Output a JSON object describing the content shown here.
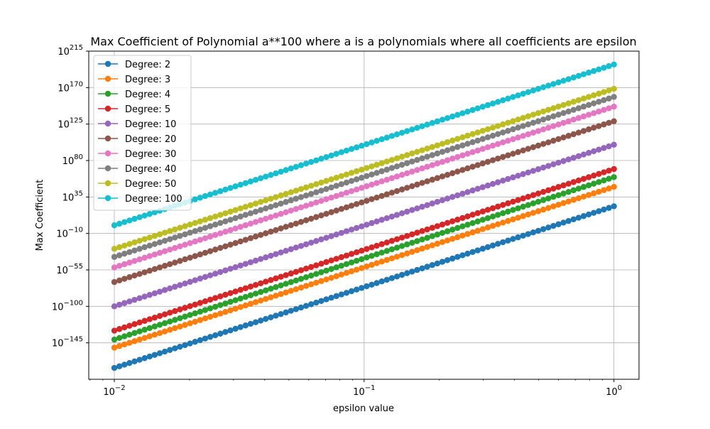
{
  "chart_data": {
    "type": "line",
    "title": "Max Coefficient of Polynomial a**100 where a is a polynomials where all coefficients are epsilon",
    "xlabel": "epsilon value",
    "ylabel": "Max Coefficient",
    "xscale": "log",
    "yscale": "log",
    "xlim": [
      0.0079,
      1.26
    ],
    "ylim_log10_exponent": [
      -190,
      215
    ],
    "x_ticks": [
      {
        "value": 0.01,
        "base": "10",
        "exp": "−2"
      },
      {
        "value": 0.1,
        "base": "10",
        "exp": "−1"
      },
      {
        "value": 1,
        "base": "10",
        "exp": "0"
      }
    ],
    "y_ticks": [
      {
        "value_exp": 215,
        "base": "10",
        "exp": "215"
      },
      {
        "value_exp": 170,
        "base": "10",
        "exp": "170"
      },
      {
        "value_exp": 125,
        "base": "10",
        "exp": "125"
      },
      {
        "value_exp": 80,
        "base": "10",
        "exp": "80"
      },
      {
        "value_exp": 35,
        "base": "10",
        "exp": "35"
      },
      {
        "value_exp": -10,
        "base": "10",
        "exp": "−10"
      },
      {
        "value_exp": -55,
        "base": "10",
        "exp": "−55"
      },
      {
        "value_exp": -100,
        "base": "10",
        "exp": "−100"
      },
      {
        "value_exp": -145,
        "base": "10",
        "exp": "−145"
      }
    ],
    "grid": true,
    "legend_position": "top-left",
    "x_points": {
      "start": 0.01,
      "end": 1,
      "count": 100,
      "spacing": "log"
    },
    "series": [
      {
        "name": "Degree: 2",
        "color": "#1f77b4",
        "log10_max_coeff_at_x_0_01": -176,
        "log10_max_coeff_at_x_1": 23.5
      },
      {
        "name": "Degree: 3",
        "color": "#ff7f0e",
        "log10_max_coeff_at_x_0_01": -151,
        "log10_max_coeff_at_x_1": 47.5
      },
      {
        "name": "Degree: 4",
        "color": "#2ca02c",
        "log10_max_coeff_at_x_0_01": -141,
        "log10_max_coeff_at_x_1": 59.5
      },
      {
        "name": "Degree: 5",
        "color": "#d62728",
        "log10_max_coeff_at_x_0_01": -130,
        "log10_max_coeff_at_x_1": 69.5
      },
      {
        "name": "Degree: 10",
        "color": "#9467bd",
        "log10_max_coeff_at_x_0_01": -100,
        "log10_max_coeff_at_x_1": 99.5
      },
      {
        "name": "Degree: 20",
        "color": "#8c564b",
        "log10_max_coeff_at_x_0_01": -70,
        "log10_max_coeff_at_x_1": 128.5
      },
      {
        "name": "Degree: 30",
        "color": "#e377c2",
        "log10_max_coeff_at_x_0_01": -52,
        "log10_max_coeff_at_x_1": 146.5
      },
      {
        "name": "Degree: 40",
        "color": "#7f7f7f",
        "log10_max_coeff_at_x_0_01": -39,
        "log10_max_coeff_at_x_1": 158.5
      },
      {
        "name": "Degree: 50",
        "color": "#bcbd22",
        "log10_max_coeff_at_x_0_01": -29,
        "log10_max_coeff_at_x_1": 168.5
      },
      {
        "name": "Degree: 100",
        "color": "#17becf",
        "log10_max_coeff_at_x_0_01": 0,
        "log10_max_coeff_at_x_1": 198.5
      }
    ]
  }
}
